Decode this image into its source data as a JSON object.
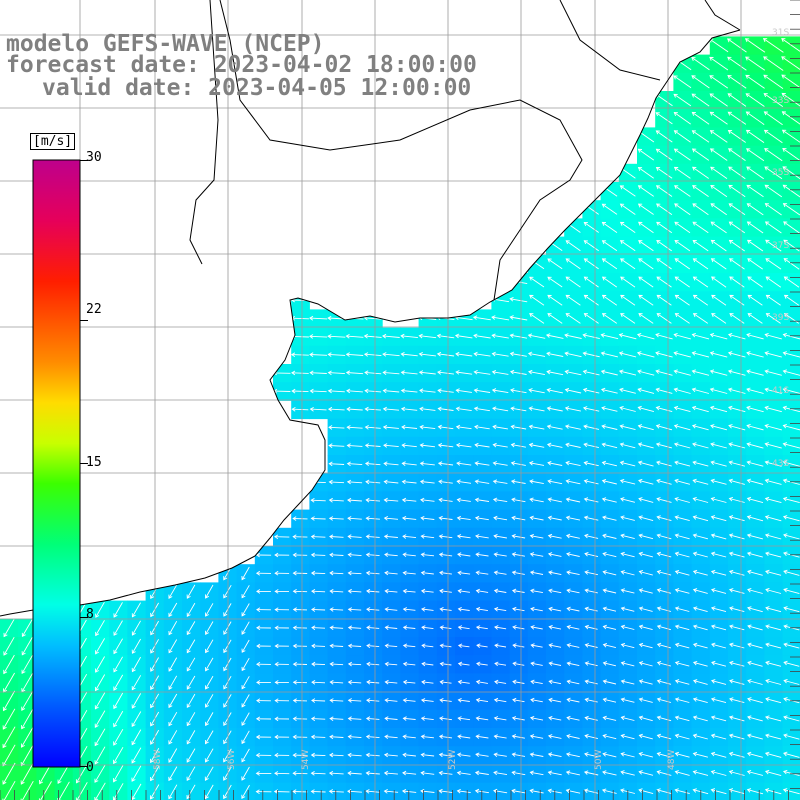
{
  "title": {
    "line1": "modelo GEFS-WAVE (NCEP)",
    "line2": "forecast date: 2023-04-02 18:00:00",
    "line3": "valid date: 2023-04-05 12:00:00"
  },
  "colorbar": {
    "unit": "[m/s]",
    "ticks": [
      "30",
      "22",
      "15",
      "8",
      "0"
    ],
    "tick_values": [
      30,
      22,
      15,
      8,
      0
    ],
    "range": [
      0,
      30
    ],
    "colors": [
      "#0000ff",
      "#0077ff",
      "#00ddff",
      "#00ffcc",
      "#00ff00",
      "#aaff00",
      "#ffff00",
      "#ff9900",
      "#ff0000",
      "#dd0066",
      "#bb0088"
    ]
  },
  "map": {
    "field": "wind speed and direction",
    "land_color": "#ffffff",
    "coast_color": "#000000",
    "grid_color": "#9a9a9a",
    "lat_labels": [
      "31S",
      "33S",
      "35S",
      "37S",
      "39S",
      "41S",
      "43S"
    ],
    "lon_labels": [
      "58W",
      "56W",
      "54W",
      "52W",
      "50W",
      "48W"
    ],
    "lat_range_deg": [
      -44,
      -30
    ],
    "lon_range_deg": [
      -60,
      -47
    ],
    "dominant_wind": "easterly to north-easterly flow, strongest in the north-east and south-west corners"
  }
}
